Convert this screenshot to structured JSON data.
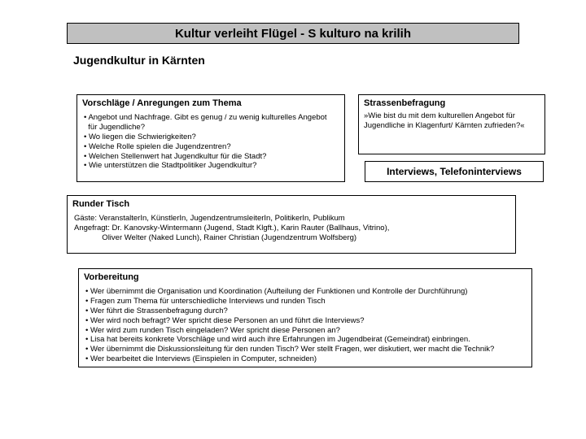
{
  "title": "Kultur verleiht Flügel - S kulturo na krilih",
  "subtitle": "Jugendkultur in Kärnten",
  "vorschlaege": {
    "header": "Vorschläge / Anregungen zum Thema",
    "bullets": [
      "• Angebot und Nachfrage. Gibt es genug / zu wenig kulturelles Angebot",
      "  für Jugendliche?",
      "• Wo liegen die Schwierigkeiten?",
      "• Welche Rolle spielen die Jugendzentren?",
      "• Welchen Stellenwert hat Jugendkultur für die Stadt?",
      "• Wie unterstützen die Stadtpolitiker Jugendkultur?"
    ]
  },
  "strassen": {
    "header": "Strassenbefragung",
    "body": "»Wie bist du mit dem kulturellen Angebot für Jugendliche in Klagenfurt/ Kärnten zufrieden?«"
  },
  "interviews": "Interviews, Telefoninterviews",
  "runder": {
    "header": "Runder Tisch",
    "lines": [
      "Gäste: VeranstalterIn, KünstlerIn, JugendzentrumsleiterIn, PolitikerIn, Publikum",
      "Angefragt: Dr. Kanovsky-Wintermann (Jugend, Stadt Klgft.), Karin Rauter (Ballhaus, Vitrino),",
      "             Oliver Welter (Naked Lunch), Rainer Christian (Jugendzentrum Wolfsberg)"
    ]
  },
  "vorbereitung": {
    "header": "Vorbereitung",
    "bullets": [
      "• Wer übernimmt die Organisation und Koordination (Aufteilung der Funktionen und Kontrolle der Durchführung)",
      "• Fragen zum Thema für unterschiedliche Interviews und runden Tisch",
      "• Wer führt die Strassenbefragung durch?",
      "• Wer wird noch befragt? Wer spricht diese Personen an und führt die Interviews?",
      "• Wer wird zum runden Tisch eingeladen? Wer spricht diese Personen an?",
      "• Lisa hat bereits konkrete Vorschläge und wird auch ihre Erfahrungen im Jugendbeirat (Gemeindrat) einbringen.",
      "• Wer übernimmt die Diskussionsleitung für den runden Tisch? Wer stellt Fragen, wer diskutiert, wer macht die Technik?",
      "• Wer bearbeitet die Interviews (Einspielen in Computer, schneiden)"
    ]
  }
}
